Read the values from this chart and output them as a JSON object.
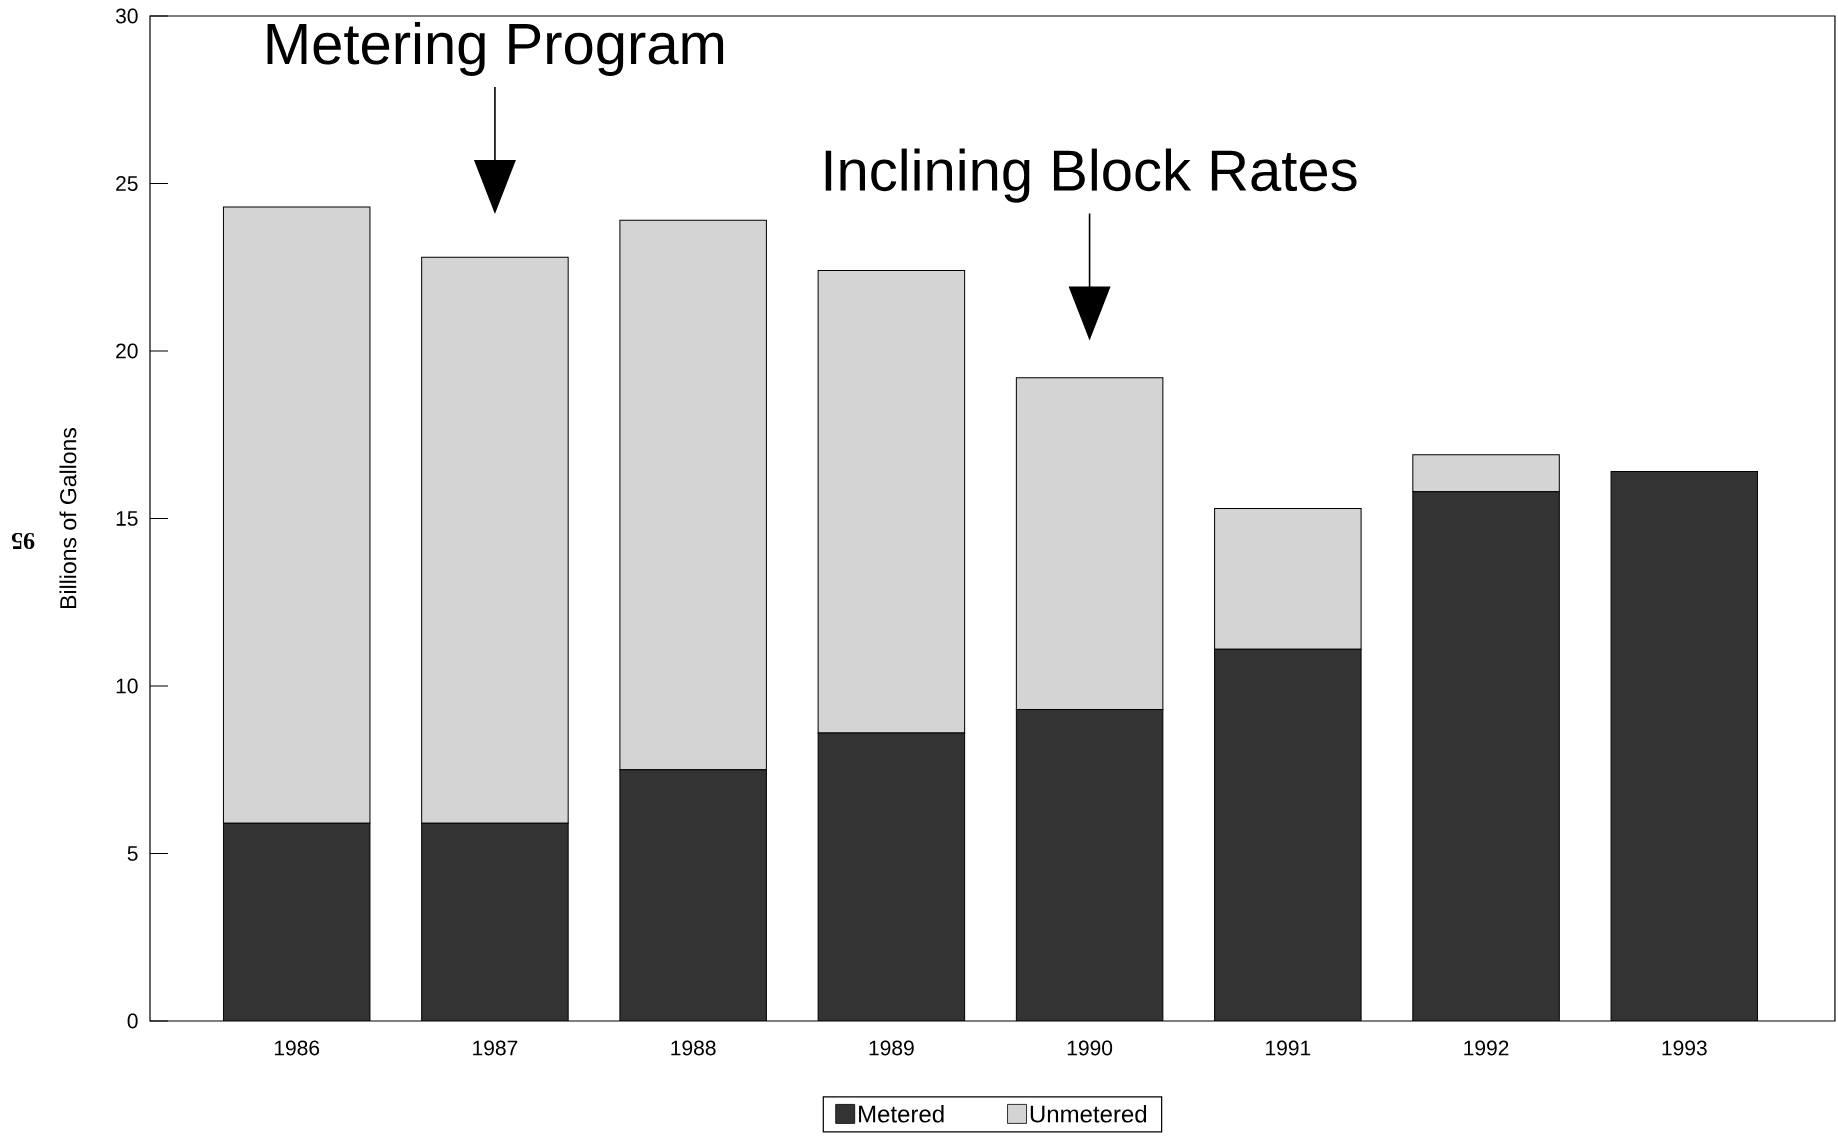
{
  "chart_data": {
    "type": "bar",
    "stacked": true,
    "ylabel": "Billions of Gallons",
    "categories": [
      "1986",
      "1987",
      "1988",
      "1989",
      "1990",
      "1991",
      "1992",
      "1993"
    ],
    "series": [
      {
        "name": "Metered",
        "color": "#333333",
        "values": [
          5.9,
          5.9,
          7.5,
          8.6,
          9.3,
          11.1,
          15.8,
          16.4
        ]
      },
      {
        "name": "Unmetered",
        "color": "#d4d4d4",
        "values": [
          18.4,
          16.9,
          16.4,
          13.8,
          9.9,
          4.2,
          1.1,
          null
        ]
      }
    ],
    "ylim": [
      0,
      30
    ],
    "yticks": [
      0,
      5,
      10,
      15,
      20,
      25,
      30
    ],
    "legend": "bottom",
    "annotations": [
      "Metering Program",
      "Inclining Block Rates",
      "95"
    ]
  }
}
